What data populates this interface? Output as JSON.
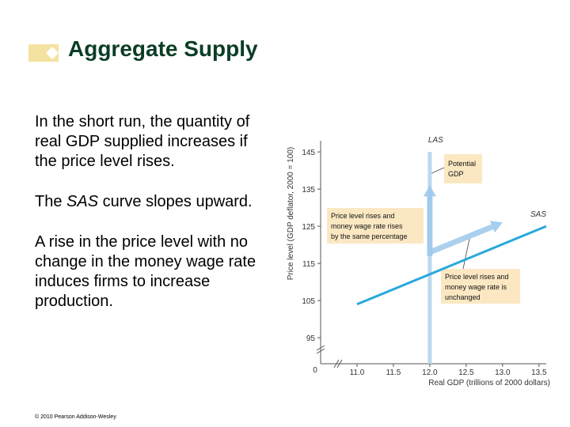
{
  "slide": {
    "title": "Aggregate Supply",
    "bullet1": "In the short run, the quantity of real GDP supplied increases if the price level rises.",
    "bullet2_pre": "The ",
    "bullet2_em": "SAS",
    "bullet2_post": " curve slopes upward.",
    "bullet3": "A rise in the price level with no change in the money wage rate induces firms to increase production.",
    "copyright": "© 2010 Pearson Addison-Wesley"
  },
  "colors": {
    "title": "#0b3d25",
    "title_decoration": "#f4e2a0",
    "sas_line": "#29a8dc",
    "las_line": "#bcd9ee",
    "arrow": "#9cc8ec",
    "annotation_box": "#fbe8c3",
    "axis": "#555555"
  },
  "chart_data": {
    "type": "line",
    "xlabel": "Real GDP (trillions of 2000 dollars)",
    "ylabel": "Price level (GDP deflator, 2000 = 100)",
    "x_ticks": [
      "11.0",
      "11.5",
      "12.0",
      "12.5",
      "13.0",
      "13.5"
    ],
    "y_ticks": [
      "95",
      "105",
      "115",
      "125",
      "135",
      "145"
    ],
    "origin_label": "0",
    "xlim": [
      10.5,
      13.6
    ],
    "ylim": [
      88,
      148
    ],
    "axis_breaks": true,
    "series": [
      {
        "name": "SAS",
        "points": [
          [
            11.0,
            104
          ],
          [
            13.6,
            125
          ]
        ]
      },
      {
        "name": "LAS",
        "points": [
          [
            12.0,
            88
          ],
          [
            12.0,
            145
          ]
        ]
      }
    ],
    "movement_arrows": [
      {
        "from": [
          12.0,
          117
        ],
        "to": [
          12.0,
          136
        ]
      },
      {
        "from": [
          12.0,
          118
        ],
        "to": [
          13.0,
          126
        ]
      }
    ],
    "annotations": {
      "potential_gdp": [
        "Potential",
        "GDP"
      ],
      "price_rise_same": [
        "Price level rises and",
        "money wage rate rises",
        "by the same percentage"
      ],
      "price_rise_unchanged": [
        "Price level rises and",
        "money wage rate is",
        "unchanged"
      ]
    }
  }
}
